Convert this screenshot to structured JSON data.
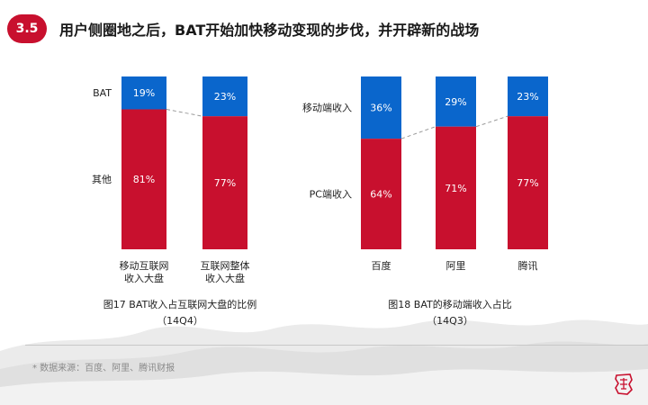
{
  "header": {
    "section_number": "3.5",
    "title": "用户侧圈地之后，BAT开始加快移动变现的步伐，并开辟新的战场"
  },
  "chart_data": [
    {
      "type": "bar",
      "stacked": true,
      "percent": true,
      "categories": [
        [
          "移动互联网",
          "收入大盘"
        ],
        [
          "互联网整体",
          "收入大盘"
        ]
      ],
      "series": [
        {
          "name": "其他",
          "values": [
            81,
            77
          ],
          "labels": [
            "81%",
            "77%"
          ],
          "color": "#c8102e"
        },
        {
          "name": "BAT",
          "values": [
            19,
            23
          ],
          "labels": [
            "19%",
            "23%"
          ],
          "color": "#0a66cc"
        }
      ],
      "ylim": [
        0,
        100
      ],
      "caption_line1": "图17 BAT收入占互联网大盘的比例",
      "caption_line2": "（14Q4）"
    },
    {
      "type": "bar",
      "stacked": true,
      "percent": true,
      "categories": [
        [
          "百度"
        ],
        [
          "阿里"
        ],
        [
          "腾讯"
        ]
      ],
      "series": [
        {
          "name": "PC端收入",
          "values": [
            64,
            71,
            77
          ],
          "labels": [
            "64%",
            "71%",
            "77%"
          ],
          "color": "#c8102e"
        },
        {
          "name": "移动端收入",
          "values": [
            36,
            29,
            23
          ],
          "labels": [
            "36%",
            "29%",
            "23%"
          ],
          "color": "#0a66cc"
        }
      ],
      "ylim": [
        0,
        100
      ],
      "caption_line1": "图18 BAT的移动端收入占比",
      "caption_line2": "（14Q3）"
    }
  ],
  "footer": {
    "source": "* 数据来源：百度、阿里、腾讯财报"
  }
}
